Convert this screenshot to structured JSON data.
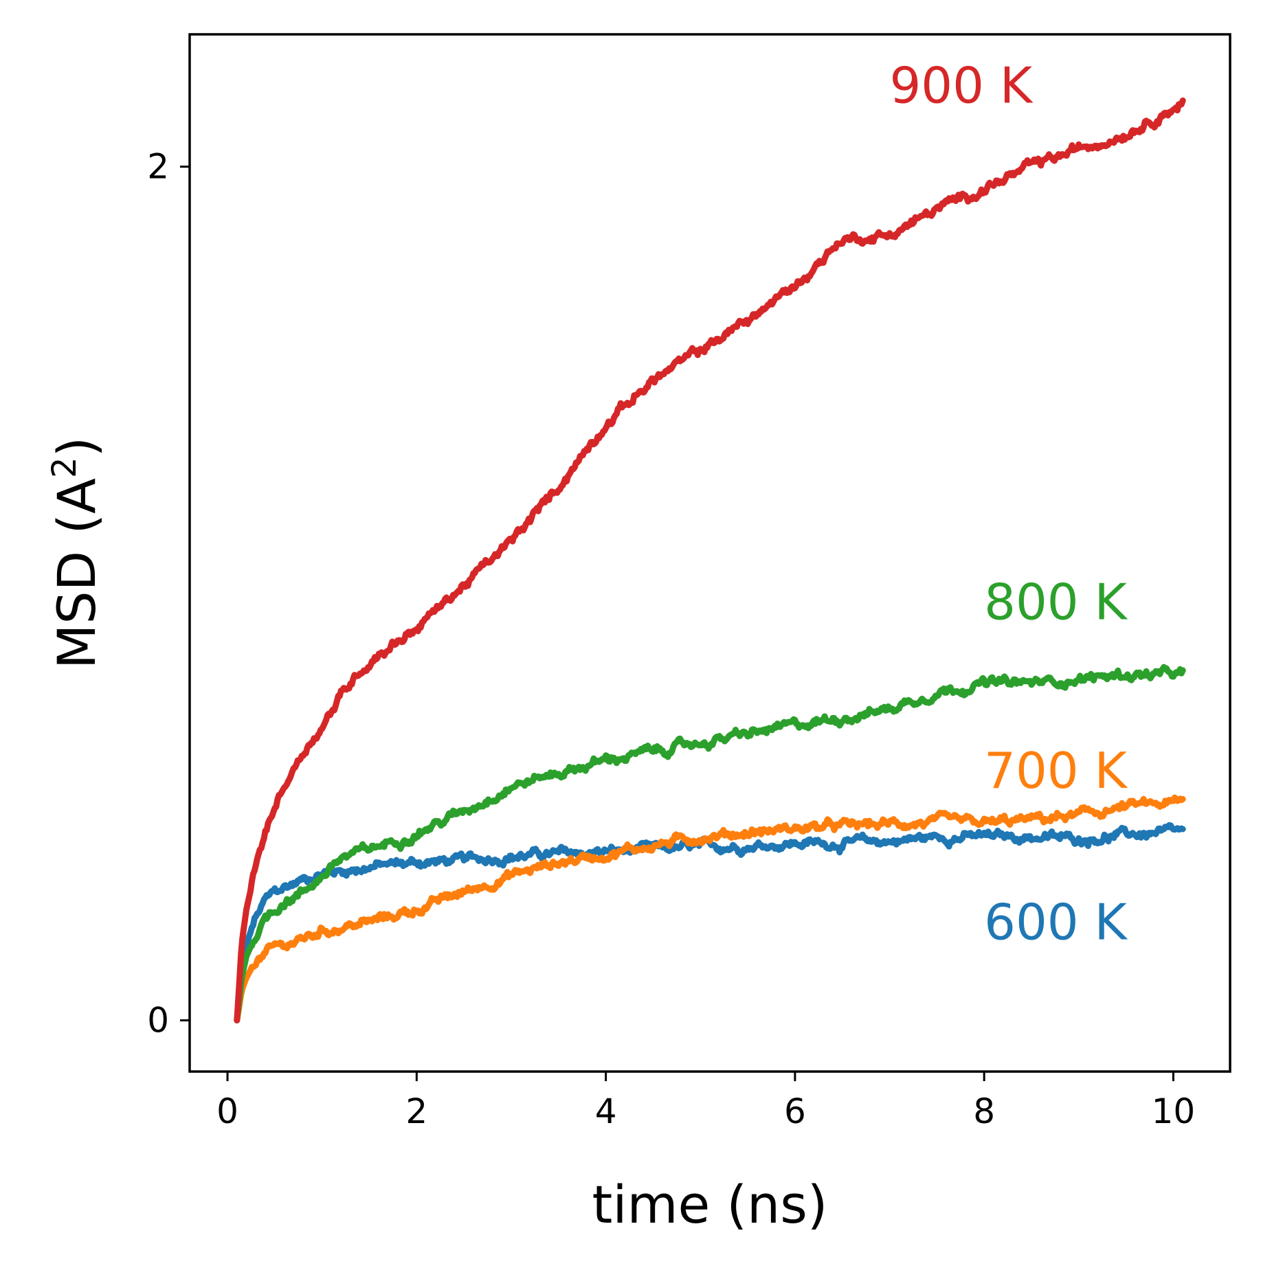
{
  "chart_data": {
    "type": "line",
    "xlabel": "time (ns)",
    "ylabel": "MSD (A",
    "ylabel_superscript": "2",
    "ylabel_close": ")",
    "xlim": [
      -0.4,
      10.6
    ],
    "ylim": [
      -0.12,
      2.31
    ],
    "xticks": [
      0,
      2,
      4,
      6,
      8,
      10
    ],
    "xtick_labels": [
      "0",
      "2",
      "4",
      "6",
      "8",
      "10"
    ],
    "yticks": [
      0,
      2
    ],
    "ytick_labels": [
      "0",
      "2"
    ],
    "grid": false,
    "legend": "none",
    "series": [
      {
        "name": "600 K",
        "color": "#1f77b4",
        "label_at": [
          8.0,
          0.19
        ],
        "x": [
          0.1,
          0.15,
          0.2,
          0.3,
          0.4,
          0.5,
          0.6,
          0.8,
          1.0,
          1.2,
          1.5,
          2.0,
          2.5,
          3.0,
          3.5,
          4.0,
          4.5,
          5.0,
          5.5,
          6.0,
          6.5,
          7.0,
          7.5,
          8.0,
          8.5,
          9.0,
          9.5,
          10.1
        ],
        "y": [
          0.0,
          0.12,
          0.18,
          0.24,
          0.28,
          0.3,
          0.31,
          0.33,
          0.345,
          0.35,
          0.36,
          0.37,
          0.375,
          0.385,
          0.39,
          0.395,
          0.4,
          0.405,
          0.41,
          0.415,
          0.415,
          0.42,
          0.43,
          0.43,
          0.43,
          0.425,
          0.435,
          0.44
        ]
      },
      {
        "name": "700 K",
        "color": "#ff7f0e",
        "label_at": [
          8.0,
          0.545
        ],
        "x": [
          0.1,
          0.15,
          0.2,
          0.3,
          0.5,
          0.8,
          1.0,
          1.5,
          2.0,
          2.5,
          3.0,
          3.5,
          4.0,
          4.5,
          5.0,
          5.5,
          6.0,
          6.5,
          7.0,
          7.5,
          8.0,
          8.5,
          9.0,
          9.5,
          10.1
        ],
        "y": [
          0.0,
          0.07,
          0.1,
          0.14,
          0.17,
          0.19,
          0.21,
          0.23,
          0.26,
          0.3,
          0.34,
          0.37,
          0.39,
          0.41,
          0.43,
          0.44,
          0.45,
          0.455,
          0.46,
          0.465,
          0.46,
          0.47,
          0.48,
          0.5,
          0.51
        ]
      },
      {
        "name": "800 K",
        "color": "#2ca02c",
        "label_at": [
          8.0,
          0.94
        ],
        "x": [
          0.1,
          0.15,
          0.2,
          0.3,
          0.4,
          0.5,
          0.6,
          0.8,
          1.0,
          1.2,
          1.5,
          2.0,
          2.5,
          3.0,
          3.5,
          4.0,
          4.5,
          5.0,
          5.5,
          6.0,
          6.5,
          7.0,
          7.5,
          8.0,
          8.5,
          9.0,
          9.5,
          10.1
        ],
        "y": [
          0.0,
          0.1,
          0.15,
          0.2,
          0.24,
          0.26,
          0.28,
          0.3,
          0.34,
          0.38,
          0.4,
          0.44,
          0.49,
          0.55,
          0.58,
          0.61,
          0.63,
          0.65,
          0.67,
          0.69,
          0.71,
          0.73,
          0.77,
          0.79,
          0.79,
          0.8,
          0.81,
          0.81
        ]
      },
      {
        "name": "900 K",
        "color": "#d62728",
        "label_at": [
          7.0,
          2.15
        ],
        "x": [
          0.1,
          0.15,
          0.2,
          0.3,
          0.4,
          0.5,
          0.6,
          0.8,
          1.0,
          1.2,
          1.4,
          1.6,
          1.8,
          2.0,
          2.5,
          3.0,
          3.5,
          4.0,
          4.5,
          5.0,
          5.5,
          6.0,
          6.5,
          7.0,
          7.5,
          8.0,
          8.5,
          9.0,
          9.5,
          10.1
        ],
        "y": [
          0.0,
          0.18,
          0.26,
          0.36,
          0.44,
          0.5,
          0.55,
          0.63,
          0.69,
          0.76,
          0.82,
          0.86,
          0.89,
          0.92,
          1.02,
          1.12,
          1.25,
          1.4,
          1.5,
          1.57,
          1.64,
          1.72,
          1.83,
          1.84,
          1.9,
          1.95,
          2.0,
          2.04,
          2.08,
          2.15
        ]
      }
    ]
  }
}
